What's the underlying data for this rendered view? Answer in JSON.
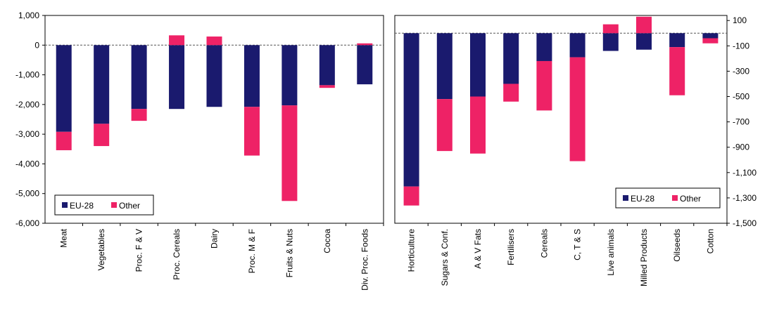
{
  "chart_data": [
    {
      "type": "bar",
      "stacked": true,
      "categories": [
        "Meat",
        "Vegetables",
        "Proc. F & V",
        "Proc. Cereals",
        "Dairy",
        "Proc. M & F",
        "Fruits & Nuts",
        "Cocoa",
        "Div. Proc. Foods"
      ],
      "series": [
        {
          "name": "EU-28",
          "color": "#1a1a6e",
          "values": [
            -2920,
            -2650,
            -2150,
            -2150,
            -2080,
            -2080,
            -2030,
            -1350,
            -1320
          ]
        },
        {
          "name": "Other",
          "color": "#ee2266",
          "values": [
            -620,
            -750,
            -400,
            330,
            290,
            -1640,
            -3220,
            -90,
            60
          ]
        }
      ],
      "ylim": [
        -6000,
        1000
      ],
      "yticks": [
        1000,
        0,
        -1000,
        -2000,
        -3000,
        -4000,
        -5000,
        -6000
      ],
      "ytick_labels": [
        "1,000",
        "0",
        "-1,000",
        "-2,000",
        "-3,000",
        "-4,000",
        "-5,000",
        "-6,000"
      ],
      "legend_position": "bottom-left",
      "y_axis_side": "left"
    },
    {
      "type": "bar",
      "stacked": true,
      "categories": [
        "Horticulture",
        "Sugars & Conf.",
        "A & V Fats",
        "Fertilisers",
        "Cereals",
        "C, T & S",
        "Live animals",
        "Milled Products",
        "Oilseeds",
        "Cotton"
      ],
      "series": [
        {
          "name": "EU-28",
          "color": "#1a1a6e",
          "values": [
            -1210,
            -520,
            -500,
            -400,
            -220,
            -190,
            -140,
            -130,
            -110,
            -40
          ]
        },
        {
          "name": "Other",
          "color": "#ee2266",
          "values": [
            -150,
            -410,
            -450,
            -140,
            -390,
            -820,
            70,
            130,
            -380,
            -40
          ]
        }
      ],
      "ylim": [
        -1500,
        140
      ],
      "yticks": [
        100,
        -100,
        -300,
        -500,
        -700,
        -900,
        -1100,
        -1300,
        -1500
      ],
      "ytick_labels": [
        "100",
        "-100",
        "-300",
        "-500",
        "-700",
        "-900",
        "-1,100",
        "-1,300",
        "-1,500"
      ],
      "legend_position": "bottom-right",
      "y_axis_side": "right"
    }
  ]
}
